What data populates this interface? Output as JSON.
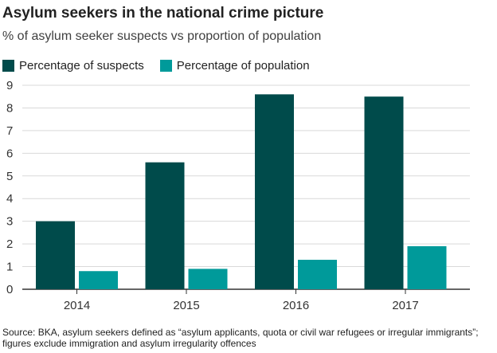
{
  "title": "Asylum seekers in the national crime picture",
  "subtitle": "% of asylum seeker suspects vs proportion of population",
  "footer": "Source: BKA, asylum seekers defined as “asylum applicants, quota or civil war refugees or irregular immigrants”; figures exclude immigration and asylum irregularity offences",
  "colors": {
    "suspects": "#004b4b",
    "population": "#009a9a",
    "grid": "#d9d9d9",
    "axis": "#333333"
  },
  "chart_data": {
    "type": "bar",
    "categories": [
      "2014",
      "2015",
      "2016",
      "2017"
    ],
    "series": [
      {
        "name": "Percentage of suspects",
        "values": [
          3.0,
          5.6,
          8.6,
          8.5
        ]
      },
      {
        "name": "Percentage of population",
        "values": [
          0.8,
          0.9,
          1.3,
          1.9
        ]
      }
    ],
    "yticks": [
      "0",
      "1",
      "2",
      "3",
      "4",
      "5",
      "6",
      "7",
      "8",
      "9"
    ],
    "ylim": [
      0,
      9
    ],
    "grid": true,
    "legend_position": "top-left",
    "xlabel": "",
    "ylabel": ""
  }
}
